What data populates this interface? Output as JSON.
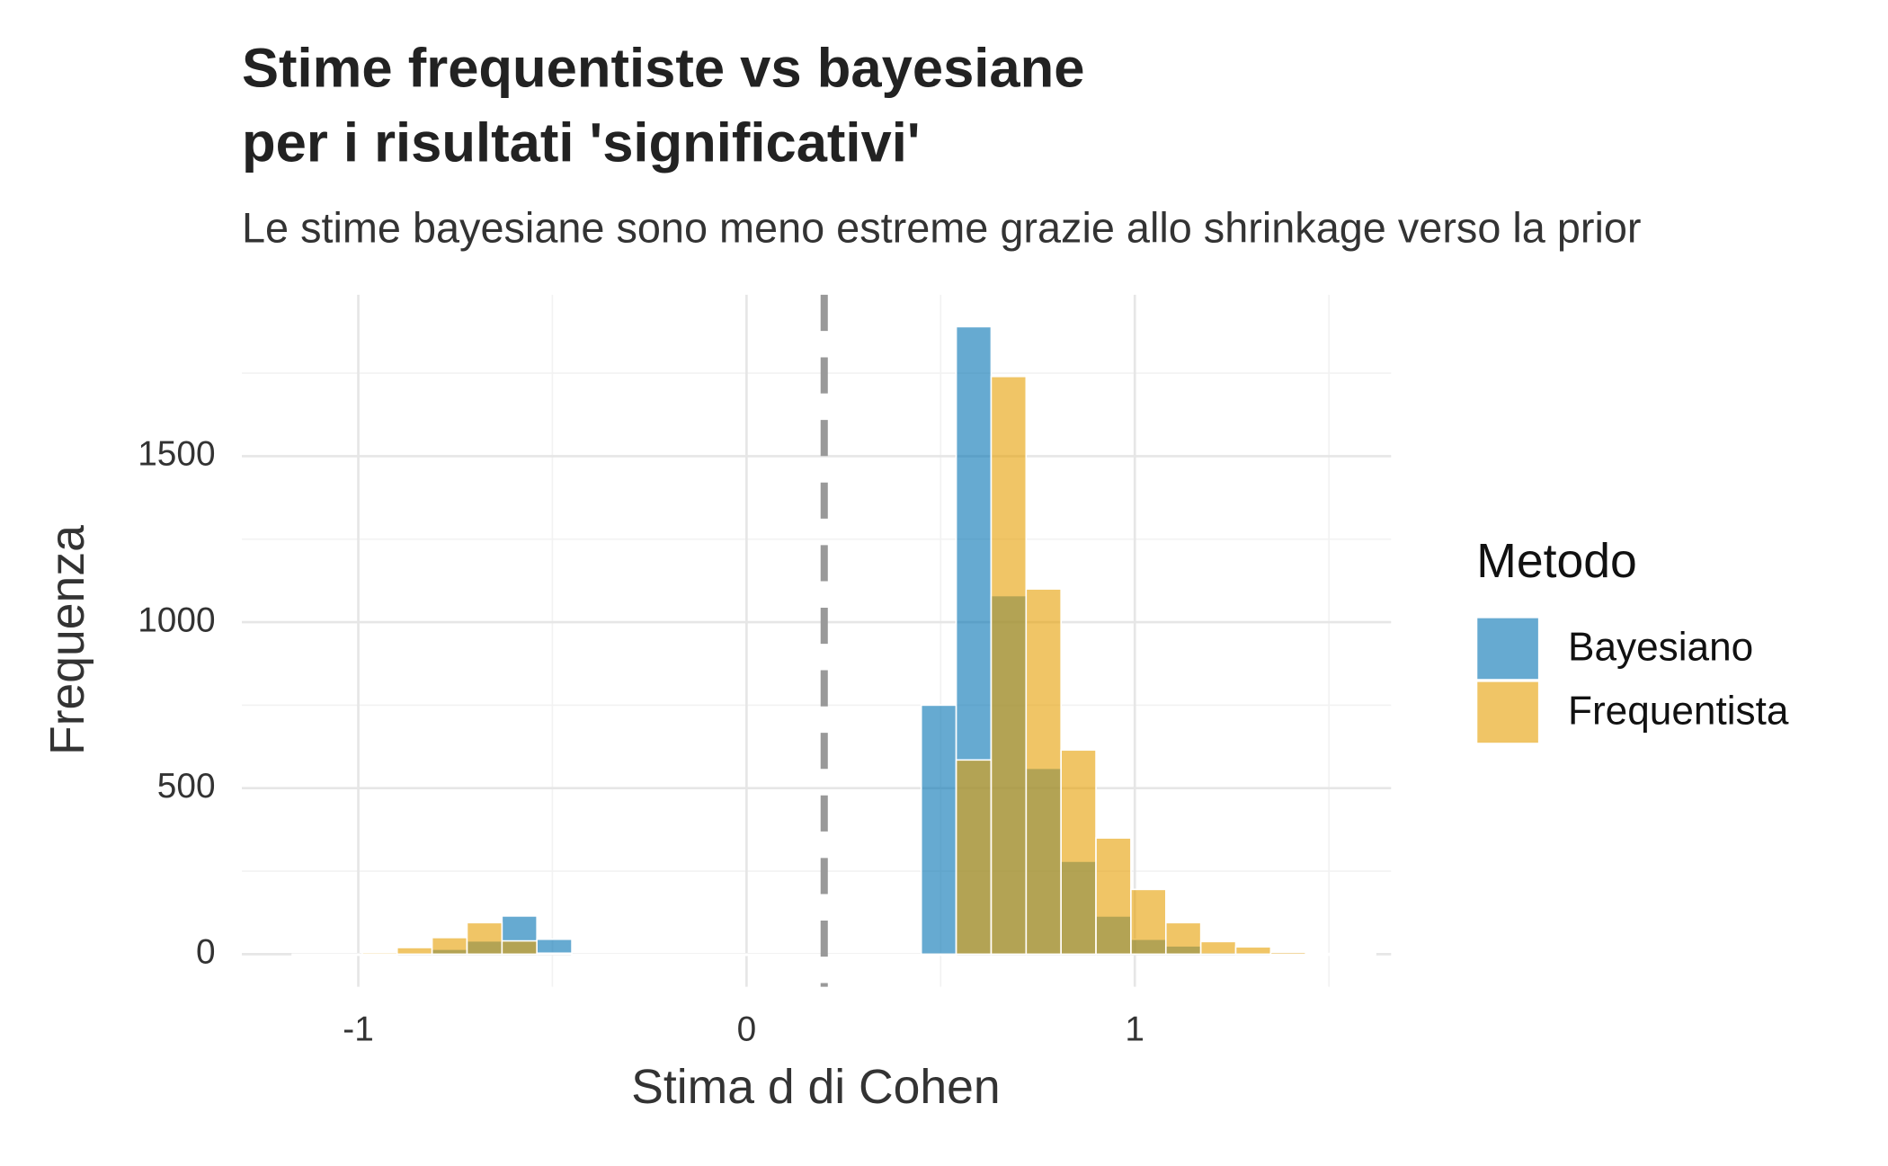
{
  "chart_data": {
    "type": "histogram",
    "title": [
      "Stime frequentiste vs bayesiane",
      "per i risultati 'significativi'"
    ],
    "subtitle": "Le stime bayesiane sono meno estreme grazie allo shrinkage verso la prior",
    "x_label": "Stima d di Cohen",
    "y_label": "Frequenza",
    "legend_title": "Metodo",
    "legend_position": "right",
    "bins": [
      -1.17,
      -1.08,
      -0.99,
      -0.9,
      -0.81,
      -0.72,
      -0.63,
      -0.54,
      -0.45,
      -0.36,
      -0.27,
      -0.18,
      -0.09,
      0,
      0.09,
      0.18,
      0.27,
      0.36,
      0.45,
      0.54,
      0.63,
      0.72,
      0.81,
      0.9,
      0.99,
      1.08,
      1.17,
      1.26,
      1.35,
      1.44,
      1.53,
      1.62
    ],
    "series": [
      {
        "name": "Bayesiano",
        "color": "#0072B2",
        "values": [
          0,
          0,
          0,
          3,
          15,
          40,
          115,
          45,
          0,
          0,
          0,
          0,
          0,
          0,
          0,
          0,
          0,
          0,
          750,
          1890,
          1080,
          560,
          280,
          115,
          45,
          25,
          5,
          2,
          0,
          0,
          0
        ]
      },
      {
        "name": "Frequentista",
        "color": "#E69F00",
        "values": [
          0,
          0,
          5,
          20,
          50,
          95,
          40,
          3,
          0,
          0,
          0,
          0,
          0,
          0,
          0,
          0,
          0,
          0,
          0,
          585,
          1740,
          1100,
          615,
          350,
          195,
          95,
          38,
          22,
          6,
          2,
          3
        ]
      }
    ],
    "opacity": 0.6,
    "vline": 0.2,
    "xlim": [
      -1.3,
      1.66
    ],
    "xticks": [
      -1,
      0,
      1
    ],
    "minor_xticks": [
      -0.5,
      0.5,
      1.5
    ],
    "ylim": [
      -98,
      1986
    ],
    "yticks": [
      0,
      500,
      1000,
      1500
    ],
    "minor_yticks": [
      250,
      750,
      1250,
      1750
    ],
    "grid": true
  }
}
